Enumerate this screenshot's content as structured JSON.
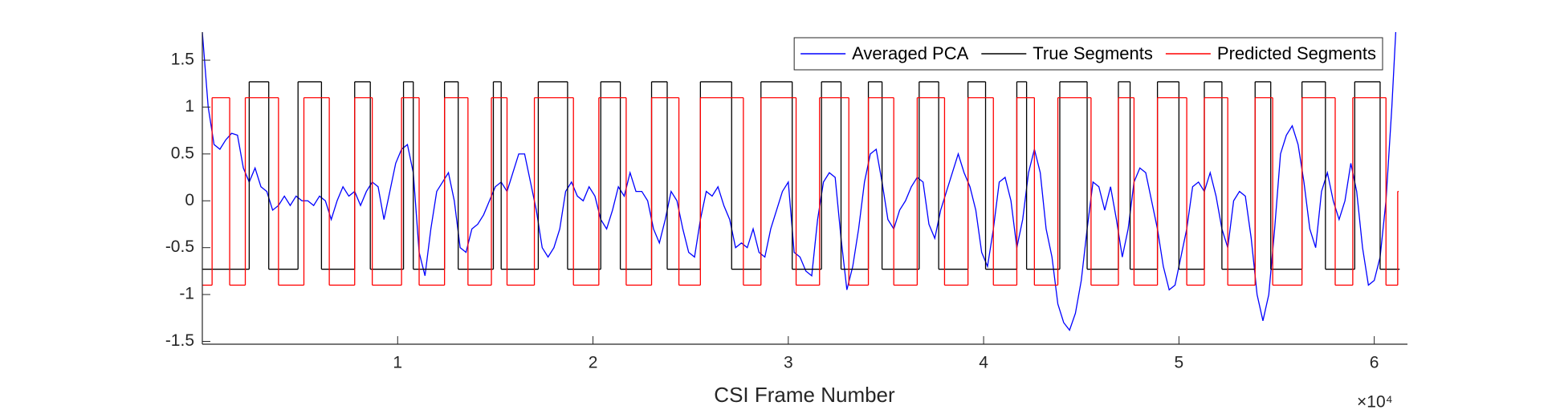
{
  "chart_data": {
    "type": "line",
    "x_label": "CSI Frame Number",
    "x_exponent_label": "×10⁴",
    "xlim": [
      0,
      61700
    ],
    "ylim": [
      -1.53,
      1.8
    ],
    "xticks": [
      {
        "value": 10000,
        "label": "1"
      },
      {
        "value": 20000,
        "label": "2"
      },
      {
        "value": 30000,
        "label": "3"
      },
      {
        "value": 40000,
        "label": "4"
      },
      {
        "value": 50000,
        "label": "5"
      },
      {
        "value": 60000,
        "label": "6"
      }
    ],
    "yticks": [
      -1.5,
      -1,
      -0.5,
      0,
      0.5,
      1,
      1.5
    ],
    "grid": false,
    "legend": "northeast",
    "series": [
      {
        "name": "Averaged PCA",
        "color": "#0000ff",
        "style": "line",
        "x": [
          0,
          300,
          600,
          900,
          1200,
          1500,
          1800,
          2100,
          2400,
          2700,
          3000,
          3300,
          3600,
          3900,
          4200,
          4500,
          4800,
          5100,
          5400,
          5700,
          6000,
          6300,
          6600,
          6900,
          7200,
          7500,
          7800,
          8100,
          8400,
          8700,
          9000,
          9300,
          9600,
          9900,
          10200,
          10500,
          10800,
          11100,
          11400,
          11700,
          12000,
          12300,
          12600,
          12900,
          13200,
          13500,
          13800,
          14100,
          14400,
          14700,
          15000,
          15300,
          15600,
          15900,
          16200,
          16500,
          16800,
          17100,
          17400,
          17700,
          18000,
          18300,
          18600,
          18900,
          19200,
          19500,
          19800,
          20100,
          20400,
          20700,
          21000,
          21300,
          21600,
          21900,
          22200,
          22500,
          22800,
          23100,
          23400,
          23700,
          24000,
          24300,
          24600,
          24900,
          25200,
          25500,
          25800,
          26100,
          26400,
          26700,
          27000,
          27300,
          27600,
          27900,
          28200,
          28500,
          28800,
          29100,
          29400,
          29700,
          30000,
          30300,
          30600,
          30900,
          31200,
          31500,
          31800,
          32100,
          32400,
          32700,
          33000,
          33300,
          33600,
          33900,
          34200,
          34500,
          34800,
          35100,
          35400,
          35700,
          36000,
          36300,
          36600,
          36900,
          37200,
          37500,
          37800,
          38100,
          38400,
          38700,
          39000,
          39300,
          39600,
          39900,
          40200,
          40500,
          40800,
          41100,
          41400,
          41700,
          42000,
          42300,
          42600,
          42900,
          43200,
          43500,
          43800,
          44100,
          44400,
          44700,
          45000,
          45300,
          45600,
          45900,
          46200,
          46500,
          46800,
          47100,
          47400,
          47700,
          48000,
          48300,
          48600,
          48900,
          49200,
          49500,
          49800,
          50100,
          50400,
          50700,
          51000,
          51300,
          51600,
          51900,
          52200,
          52500,
          52800,
          53100,
          53400,
          53700,
          54000,
          54300,
          54600,
          54900,
          55200,
          55500,
          55800,
          56100,
          56400,
          56700,
          57000,
          57300,
          57600,
          57900,
          58200,
          58500,
          58800,
          59100,
          59400,
          59700,
          60000,
          60300,
          60600,
          60900,
          61100
        ],
        "values": [
          1.8,
          1.0,
          0.6,
          0.55,
          0.65,
          0.72,
          0.7,
          0.35,
          0.2,
          0.35,
          0.15,
          0.1,
          -0.1,
          -0.05,
          0.05,
          -0.05,
          0.05,
          0.0,
          0.0,
          -0.05,
          0.05,
          0.0,
          -0.2,
          0.0,
          0.15,
          0.05,
          0.1,
          -0.05,
          0.1,
          0.2,
          0.15,
          -0.2,
          0.1,
          0.4,
          0.55,
          0.6,
          0.3,
          -0.55,
          -0.8,
          -0.3,
          0.1,
          0.2,
          0.3,
          0.0,
          -0.5,
          -0.55,
          -0.3,
          -0.25,
          -0.15,
          0.0,
          0.15,
          0.2,
          0.1,
          0.3,
          0.5,
          0.5,
          0.2,
          -0.1,
          -0.5,
          -0.6,
          -0.5,
          -0.3,
          0.1,
          0.2,
          0.05,
          0.0,
          0.15,
          0.05,
          -0.2,
          -0.3,
          -0.1,
          0.15,
          0.05,
          0.3,
          0.1,
          0.1,
          0.0,
          -0.3,
          -0.45,
          -0.2,
          0.1,
          0.0,
          -0.3,
          -0.55,
          -0.6,
          -0.2,
          0.1,
          0.05,
          0.15,
          -0.05,
          -0.2,
          -0.5,
          -0.45,
          -0.5,
          -0.3,
          -0.55,
          -0.6,
          -0.3,
          -0.1,
          0.1,
          0.2,
          -0.55,
          -0.6,
          -0.75,
          -0.8,
          -0.2,
          0.2,
          0.3,
          0.25,
          -0.4,
          -0.95,
          -0.7,
          -0.3,
          0.2,
          0.5,
          0.55,
          0.2,
          -0.2,
          -0.3,
          -0.1,
          0.0,
          0.15,
          0.25,
          0.2,
          -0.25,
          -0.4,
          -0.1,
          0.1,
          0.3,
          0.5,
          0.3,
          0.15,
          -0.1,
          -0.55,
          -0.7,
          -0.3,
          0.2,
          0.25,
          0.0,
          -0.5,
          -0.2,
          0.3,
          0.55,
          0.3,
          -0.3,
          -0.6,
          -1.1,
          -1.3,
          -1.38,
          -1.2,
          -0.85,
          -0.3,
          0.2,
          0.15,
          -0.1,
          0.15,
          -0.2,
          -0.6,
          -0.3,
          0.2,
          0.35,
          0.3,
          0.0,
          -0.3,
          -0.7,
          -0.95,
          -0.9,
          -0.6,
          -0.3,
          0.15,
          0.2,
          0.1,
          0.3,
          0.05,
          -0.3,
          -0.5,
          0.0,
          0.1,
          0.05,
          -0.4,
          -1.0,
          -1.28,
          -1.0,
          -0.3,
          0.5,
          0.7,
          0.8,
          0.6,
          0.2,
          -0.3,
          -0.5,
          0.1,
          0.3,
          0.0,
          -0.2,
          0.0,
          0.4,
          0.1,
          -0.5,
          -0.9,
          -0.85,
          -0.6,
          0.0,
          1.0,
          1.8
        ]
      },
      {
        "name": "True Segments",
        "color": "#000000",
        "style": "step",
        "edges": [
          0,
          2400,
          3400,
          4900,
          6100,
          7800,
          8600,
          10300,
          10800,
          12400,
          13100,
          14900,
          15300,
          17200,
          18700,
          20400,
          21400,
          23000,
          23800,
          25500,
          27100,
          28600,
          30200,
          31700,
          32700,
          34100,
          34800,
          36700,
          37700,
          39200,
          40100,
          41700,
          42200,
          43900,
          45300,
          46900,
          47500,
          48900,
          50000,
          51300,
          52200,
          53900,
          54700,
          56300,
          57500,
          59000,
          60300,
          61300
        ],
        "values": [
          -0.73,
          1.27,
          -0.73,
          1.27,
          -0.73,
          1.27,
          -0.73,
          1.27,
          -0.73,
          1.27,
          -0.73,
          1.27,
          -0.73,
          1.27,
          -0.73,
          1.27,
          -0.73,
          1.27,
          -0.73,
          1.27,
          -0.73,
          1.27,
          -0.73,
          1.27,
          -0.73,
          1.27,
          -0.73,
          1.27,
          -0.73,
          1.27,
          -0.73,
          1.27,
          -0.73,
          1.27,
          -0.73,
          1.27,
          -0.73,
          1.27,
          -0.73,
          1.27,
          -0.73,
          1.27,
          -0.73,
          1.27,
          -0.73,
          1.27,
          -0.73
        ]
      },
      {
        "name": "Predicted Segments",
        "color": "#ff0000",
        "style": "step",
        "edges": [
          0,
          500,
          1400,
          2200,
          3900,
          5200,
          6500,
          7800,
          8700,
          10200,
          11100,
          12400,
          13600,
          14800,
          15600,
          17000,
          19000,
          20300,
          21700,
          23000,
          24400,
          25500,
          27700,
          28600,
          30400,
          31600,
          33100,
          34100,
          35400,
          36600,
          38000,
          39200,
          40500,
          41700,
          42600,
          43800,
          45500,
          46900,
          47700,
          48900,
          50400,
          51300,
          52500,
          53900,
          54800,
          56300,
          58000,
          58900,
          60600,
          61200,
          61250
        ],
        "values": [
          -0.9,
          1.1,
          -0.9,
          1.1,
          -0.9,
          1.1,
          -0.9,
          1.1,
          -0.9,
          1.1,
          -0.9,
          1.1,
          -0.9,
          1.1,
          -0.9,
          1.1,
          -0.9,
          1.1,
          -0.9,
          1.1,
          -0.9,
          1.1,
          -0.9,
          1.1,
          -0.9,
          1.1,
          -0.9,
          1.1,
          -0.9,
          1.1,
          -0.9,
          1.1,
          -0.9,
          1.1,
          -0.9,
          1.1,
          -0.9,
          1.1,
          -0.9,
          1.1,
          -0.9,
          1.1,
          -0.9,
          1.1,
          -0.9,
          1.1,
          -0.9,
          1.1,
          -0.9,
          0.1
        ]
      }
    ]
  }
}
